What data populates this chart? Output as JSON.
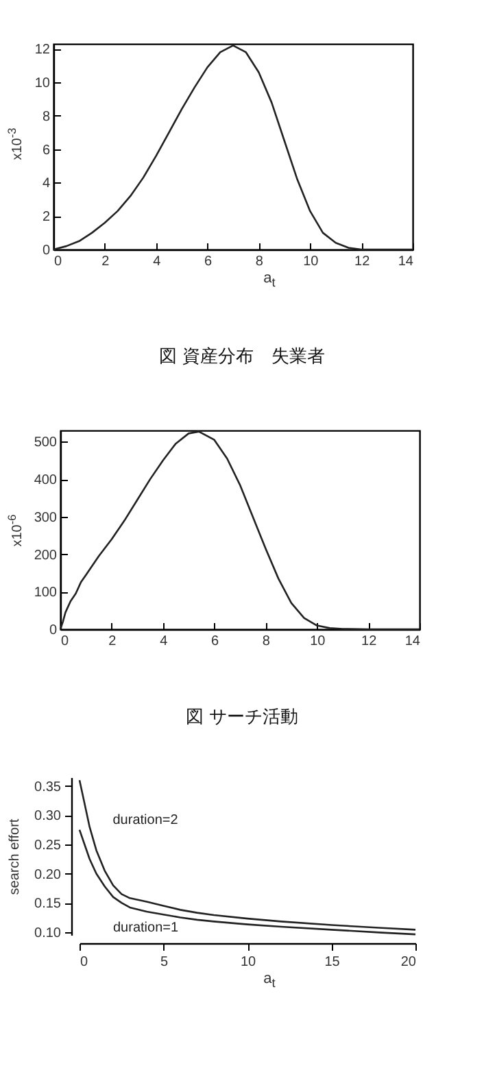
{
  "chart_data": [
    {
      "type": "line",
      "xlabel": "a$_{t}$",
      "ylabel": "x10$^{-3}$",
      "annotations": [
        "図 資産分布　失業者"
      ],
      "x": [
        0,
        0.5,
        1,
        1.5,
        2,
        2.5,
        3,
        3.5,
        4,
        4.5,
        5,
        5.5,
        6,
        6.5,
        7,
        7.5,
        8,
        8.5,
        9,
        9.5,
        10,
        10.5,
        11,
        11.5,
        12,
        13,
        14
      ],
      "series": [
        {
          "color": "#222222",
          "values": [
            0,
            0.2,
            0.5,
            1.0,
            1.6,
            2.3,
            3.2,
            4.3,
            5.6,
            7.0,
            8.4,
            9.7,
            10.9,
            11.8,
            12.2,
            11.8,
            10.6,
            8.8,
            6.5,
            4.2,
            2.3,
            1.0,
            0.4,
            0.1,
            0,
            0,
            0
          ]
        }
      ],
      "xlim": [
        0,
        14
      ],
      "xticks": [
        0,
        2,
        4,
        6,
        8,
        10,
        12,
        14
      ],
      "ylim": [
        0,
        12.3
      ],
      "yticks": [
        0,
        2,
        4,
        6,
        8,
        10,
        12
      ]
    },
    {
      "type": "line",
      "ylabel": "x10$^{-6}$",
      "annotations": [
        "図 サーチ活動"
      ],
      "x": [
        0,
        0.1,
        0.2,
        0.4,
        0.6,
        0.8,
        1,
        1.5,
        2,
        2.5,
        3,
        3.5,
        4,
        4.5,
        5,
        5.4,
        6,
        6.5,
        7,
        7.5,
        8,
        8.5,
        9,
        9.5,
        10,
        10.5,
        11,
        12,
        14
      ],
      "series": [
        {
          "color": "#222222",
          "values": [
            0,
            20,
            45,
            75,
            95,
            125,
            145,
            195,
            240,
            290,
            345,
            400,
            450,
            495,
            522,
            527,
            505,
            455,
            385,
            300,
            215,
            135,
            70,
            30,
            10,
            3,
            1,
            0,
            0
          ]
        }
      ],
      "xlim": [
        0,
        14
      ],
      "xticks": [
        0,
        2,
        4,
        6,
        8,
        10,
        12,
        14
      ],
      "ylim": [
        0,
        530
      ],
      "yticks": [
        0,
        100,
        200,
        300,
        400,
        500
      ]
    },
    {
      "type": "line",
      "xlabel": "a$_{t}$",
      "ylabel": "search effort",
      "x": [
        0,
        0.3,
        0.6,
        1,
        1.5,
        2,
        2.5,
        3,
        4,
        5,
        6,
        7,
        8,
        10,
        12,
        15,
        18,
        20
      ],
      "series": [
        {
          "name": "duration=2",
          "color": "#222222",
          "values": [
            0.36,
            0.32,
            0.28,
            0.24,
            0.205,
            0.18,
            0.165,
            0.158,
            0.152,
            0.145,
            0.138,
            0.133,
            0.129,
            0.123,
            0.118,
            0.112,
            0.107,
            0.104
          ]
        },
        {
          "name": "duration=1",
          "color": "#222222",
          "values": [
            0.275,
            0.25,
            0.225,
            0.2,
            0.178,
            0.16,
            0.15,
            0.142,
            0.135,
            0.13,
            0.125,
            0.121,
            0.118,
            0.113,
            0.109,
            0.104,
            0.099,
            0.096
          ]
        }
      ],
      "xlim": [
        0,
        20
      ],
      "xticks": [
        0,
        5,
        10,
        15,
        20
      ],
      "ylim": [
        0.095,
        0.365
      ],
      "yticks": [
        {
          "value": 0.1,
          "label": "0.10"
        },
        {
          "value": 0.15,
          "label": "0.15"
        },
        {
          "value": 0.2,
          "label": "0.20"
        },
        {
          "value": 0.25,
          "label": "0.25"
        },
        {
          "value": 0.3,
          "label": "0.30"
        },
        {
          "value": 0.35,
          "label": "0.35"
        }
      ]
    }
  ]
}
